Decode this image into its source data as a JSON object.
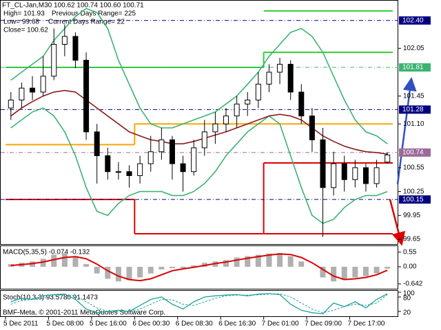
{
  "chart_data": {
    "type": "candlestick",
    "info": [
      "FT_CL-Jan,M30  100.62 100.74 100.60 100.71",
      "High= 101.93",
      "Previous Days Range= 225",
      "Low= 99.68",
      "Current Days Range= 22",
      "Close= 100.62"
    ],
    "categories": [
      "5 Dec 2011",
      null,
      null,
      null,
      "5 Dec 08:00",
      null,
      null,
      null,
      "5 Dec 16:00",
      null,
      null,
      null,
      "6 Dec 00:30",
      null,
      null,
      null,
      "6 Dec 08:30",
      null,
      null,
      null,
      "6 Dec 16:30",
      null,
      null,
      null,
      "7 Dec 01:00",
      null,
      null,
      null,
      "7 Dec 09:00",
      null,
      null,
      null,
      "7 Dec 17:00",
      null,
      null,
      null
    ],
    "ohlc": [
      [
        101.3,
        101.5,
        101.15,
        101.4
      ],
      [
        101.4,
        101.62,
        101.3,
        101.55
      ],
      [
        101.55,
        101.7,
        101.4,
        101.5
      ],
      [
        101.5,
        101.95,
        101.45,
        101.7
      ],
      [
        101.7,
        102.3,
        101.65,
        102.1
      ],
      [
        102.1,
        102.35,
        101.95,
        102.2
      ],
      [
        102.2,
        102.25,
        101.8,
        101.9
      ],
      [
        101.9,
        102.0,
        100.9,
        101.0
      ],
      [
        101.0,
        101.1,
        100.35,
        100.7
      ],
      [
        100.7,
        100.8,
        100.4,
        100.5
      ],
      [
        100.5,
        100.62,
        100.4,
        100.5
      ],
      [
        100.5,
        100.58,
        100.3,
        100.45
      ],
      [
        100.45,
        100.7,
        100.35,
        100.6
      ],
      [
        100.6,
        100.95,
        100.5,
        100.75
      ],
      [
        100.75,
        101.05,
        100.65,
        100.9
      ],
      [
        100.9,
        100.95,
        100.4,
        100.6
      ],
      [
        100.6,
        100.7,
        100.25,
        100.5
      ],
      [
        100.5,
        100.9,
        100.45,
        100.8
      ],
      [
        100.8,
        101.15,
        100.7,
        101.0
      ],
      [
        101.0,
        101.25,
        100.85,
        101.1
      ],
      [
        101.1,
        101.3,
        101.0,
        101.2
      ],
      [
        101.2,
        101.45,
        101.05,
        101.35
      ],
      [
        101.35,
        101.5,
        101.2,
        101.4
      ],
      [
        101.4,
        101.75,
        101.3,
        101.6
      ],
      [
        101.6,
        101.85,
        101.5,
        101.75
      ],
      [
        101.75,
        101.93,
        101.6,
        101.85
      ],
      [
        101.85,
        101.9,
        101.4,
        101.5
      ],
      [
        101.5,
        101.6,
        101.1,
        101.2
      ],
      [
        101.2,
        101.3,
        100.75,
        100.9
      ],
      [
        100.9,
        101.05,
        99.68,
        100.3
      ],
      [
        100.3,
        100.75,
        100.2,
        100.6
      ],
      [
        100.6,
        100.7,
        100.25,
        100.4
      ],
      [
        100.4,
        100.65,
        100.3,
        100.55
      ],
      [
        100.55,
        100.6,
        100.25,
        100.35
      ],
      [
        100.35,
        100.65,
        100.3,
        100.55
      ],
      [
        100.62,
        100.74,
        100.6,
        100.71
      ]
    ],
    "series": [
      {
        "color": "#3cb371",
        "values": [
          101.65,
          101.75,
          101.85,
          101.95,
          102.15,
          102.3,
          102.45,
          102.55,
          102.5,
          102.3,
          101.9,
          101.6,
          101.3,
          101.1,
          101.05,
          101.05,
          101.1,
          101.15,
          101.2,
          101.25,
          101.35,
          101.45,
          101.6,
          101.75,
          101.95,
          102.1,
          102.25,
          102.3,
          102.2,
          102.0,
          101.7,
          101.4,
          101.15,
          101.0,
          100.95,
          100.85
        ]
      },
      {
        "color": "#3cb371",
        "values": [
          101.05,
          101.15,
          101.25,
          101.3,
          101.2,
          101.0,
          100.7,
          100.3,
          100.0,
          99.95,
          100.1,
          100.2,
          100.25,
          100.25,
          100.25,
          100.2,
          100.2,
          100.25,
          100.35,
          100.5,
          100.7,
          100.85,
          101.0,
          101.1,
          101.2,
          101.1,
          100.7,
          100.3,
          99.95,
          99.85,
          99.9,
          100.05,
          100.15,
          100.2,
          100.2,
          100.25
        ]
      },
      {
        "color": "#8b1a1a",
        "values": [
          101.2,
          101.3,
          101.38,
          101.45,
          101.5,
          101.52,
          101.5,
          101.4,
          101.3,
          101.2,
          101.1,
          101.0,
          100.95,
          100.9,
          100.88,
          100.85,
          100.85,
          100.88,
          100.92,
          100.96,
          101.0,
          101.05,
          101.1,
          101.15,
          101.2,
          101.22,
          101.2,
          101.15,
          101.05,
          100.95,
          100.88,
          100.82,
          100.78,
          100.75,
          100.74,
          100.72
        ]
      }
    ],
    "day_levels": [
      {
        "color": "#32cd32",
        "values": [
          null,
          null,
          102.52
        ]
      },
      {
        "color": "#32cd32",
        "values": [
          101.81,
          101.81,
          102.0
        ]
      },
      {
        "color": "#ffa500",
        "values": [
          100.84,
          101.1,
          101.1
        ]
      },
      {
        "color": "#dd0000",
        "values": [
          100.15,
          99.72,
          100.61
        ]
      },
      {
        "color": "#dd0000",
        "values": [
          null,
          null,
          99.72
        ]
      }
    ],
    "hlines": [
      {
        "value": 102.4,
        "label": "102.40",
        "color": "#000080"
      },
      {
        "value": 101.81,
        "label": "101.81",
        "color": "#3cb371"
      },
      {
        "value": 101.28,
        "label": "101.28",
        "color": "#000080"
      },
      {
        "value": 100.74,
        "label": "100.74",
        "color": "#9b6b9b"
      },
      {
        "value": 100.15,
        "label": "100.15",
        "color": "#000080"
      }
    ],
    "ylim": [
      99.59,
      102.64
    ],
    "yticks": [
      102.05,
      101.45,
      {
        "value": 101.1,
        "label": "101.10"
      },
      100.55,
      100.25,
      99.95,
      99.65
    ],
    "macd": {
      "label": "MACD(5,35,5) -0.074 -0.132",
      "ylim": [
        -0.825,
        0.775
      ],
      "yticks": [
        0.55,
        {
          "value": 0,
          "label": "0.00"
        },
        -0.642
      ],
      "histogram": [
        0.1,
        0.15,
        0.2,
        0.3,
        0.45,
        0.5,
        0.4,
        0.1,
        -0.25,
        -0.45,
        -0.55,
        -0.5,
        -0.4,
        -0.25,
        -0.1,
        -0.05,
        -0.05,
        0.05,
        0.15,
        0.2,
        0.25,
        0.35,
        0.4,
        0.45,
        0.5,
        0.52,
        0.4,
        0.2,
        0.0,
        -0.4,
        -0.55,
        -0.5,
        -0.4,
        -0.35,
        -0.25,
        -0.07
      ],
      "signal": [
        0.05,
        0.08,
        0.12,
        0.18,
        0.27,
        0.35,
        0.38,
        0.3,
        0.1,
        -0.15,
        -0.35,
        -0.48,
        -0.52,
        -0.45,
        -0.3,
        -0.15,
        -0.08,
        -0.02,
        0.05,
        0.12,
        0.18,
        0.25,
        0.32,
        0.38,
        0.44,
        0.48,
        0.46,
        0.35,
        0.15,
        -0.1,
        -0.35,
        -0.48,
        -0.45,
        -0.4,
        -0.3,
        -0.13
      ],
      "hist_color": "#b0b0b0",
      "signal_color": "#dd0000"
    },
    "stoch": {
      "label": "Stoch(10,3,3) 93.5780 91.1473",
      "ylim": [
        0,
        100
      ],
      "yticks": [
        100,
        80,
        20
      ],
      "main": [
        60,
        75,
        70,
        85,
        90,
        92,
        70,
        30,
        15,
        20,
        25,
        20,
        45,
        70,
        80,
        50,
        30,
        60,
        80,
        85,
        88,
        90,
        85,
        92,
        94,
        90,
        50,
        25,
        15,
        10,
        55,
        40,
        60,
        35,
        70,
        93.578
      ],
      "signal": [
        50,
        65,
        70,
        75,
        85,
        90,
        85,
        60,
        35,
        20,
        18,
        22,
        30,
        50,
        70,
        68,
        50,
        45,
        60,
        75,
        85,
        88,
        88,
        89,
        92,
        93,
        80,
        55,
        30,
        15,
        25,
        40,
        50,
        45,
        55,
        91.1473
      ],
      "color": "#20a0a0"
    },
    "copyright": "BMF-Meta, © 2001-2011 MetaQuotes Software Corp."
  }
}
